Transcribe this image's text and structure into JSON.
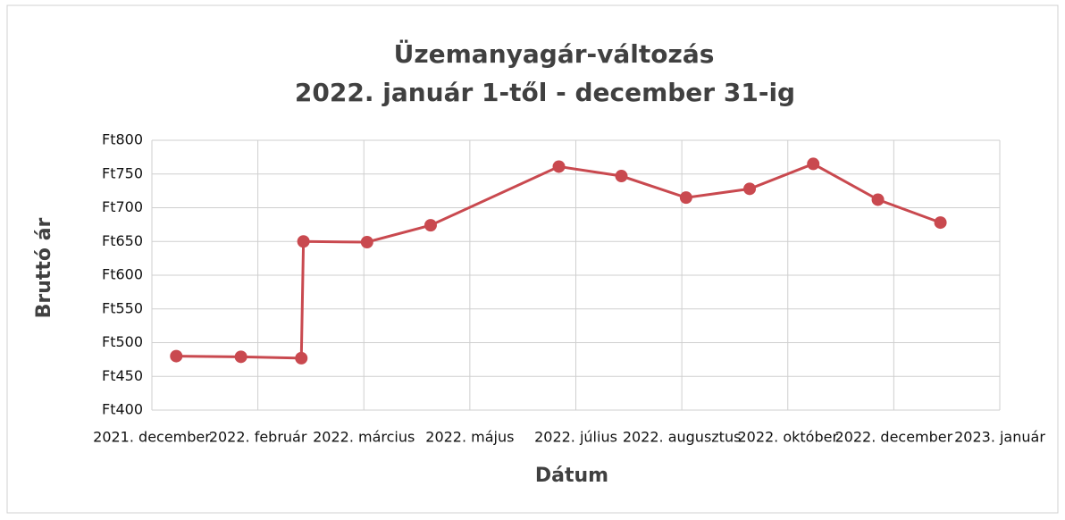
{
  "chart_data": {
    "type": "line",
    "title": "Üzemanyagár-változás",
    "subtitle": "2022. január 1-től - december 31-ig",
    "y_label": "Bruttó ár",
    "x_label": "Dátum",
    "xlim": [
      0,
      8
    ],
    "xticks": [
      {
        "value": 0,
        "label": "2021. december"
      },
      {
        "value": 1,
        "label": "2022. február"
      },
      {
        "value": 2,
        "label": "2022. március"
      },
      {
        "value": 3,
        "label": "2022. május"
      },
      {
        "value": 4,
        "label": "2022. július"
      },
      {
        "value": 5,
        "label": "2022. augusztus"
      },
      {
        "value": 6,
        "label": "2022. október"
      },
      {
        "value": 7,
        "label": "2022. december"
      },
      {
        "value": 8,
        "label": "2023. január"
      }
    ],
    "ylim": [
      400,
      800
    ],
    "yticks": [
      {
        "value": 400,
        "label": "Ft400"
      },
      {
        "value": 450,
        "label": "Ft450"
      },
      {
        "value": 500,
        "label": "Ft500"
      },
      {
        "value": 550,
        "label": "Ft550"
      },
      {
        "value": 600,
        "label": "Ft600"
      },
      {
        "value": 650,
        "label": "Ft650"
      },
      {
        "value": 700,
        "label": "Ft700"
      },
      {
        "value": 750,
        "label": "Ft750"
      },
      {
        "value": 800,
        "label": "Ft800"
      }
    ],
    "grid": true,
    "series": [
      {
        "color": "#c9494f",
        "x": [
          0.23,
          0.84,
          1.41,
          1.43,
          2.03,
          2.63,
          3.84,
          4.43,
          5.04,
          5.64,
          6.24,
          6.85,
          7.44
        ],
        "values": [
          480,
          479,
          477,
          650,
          649,
          674,
          761,
          747,
          715,
          728,
          765,
          712,
          678
        ]
      }
    ]
  }
}
